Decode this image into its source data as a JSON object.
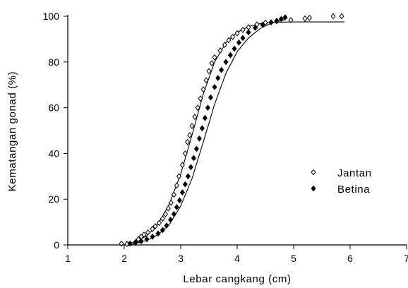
{
  "chart_data": {
    "type": "scatter",
    "title": "",
    "xlabel": "Lebar cangkang (cm)",
    "ylabel": "Kematangan gonad (%)",
    "xlim": [
      1,
      7
    ],
    "ylim": [
      0,
      100
    ],
    "xticks": [
      1,
      2,
      3,
      4,
      5,
      6,
      7
    ],
    "yticks": [
      0,
      20,
      40,
      60,
      80,
      100
    ],
    "grid": false,
    "legend_position": "center-right",
    "series": [
      {
        "name": "Jantan",
        "marker": "open-diamond",
        "color": "#000000",
        "points": [
          [
            1.95,
            0.6
          ],
          [
            2.05,
            0.4
          ],
          [
            2.2,
            1.2
          ],
          [
            2.25,
            2.5
          ],
          [
            2.3,
            3.6
          ],
          [
            2.35,
            4.5
          ],
          [
            2.42,
            5.5
          ],
          [
            2.5,
            7.0
          ],
          [
            2.55,
            8.2
          ],
          [
            2.62,
            9.6
          ],
          [
            2.68,
            11.5
          ],
          [
            2.73,
            13.5
          ],
          [
            2.78,
            16.0
          ],
          [
            2.83,
            18.5
          ],
          [
            2.88,
            22.0
          ],
          [
            2.93,
            26.0
          ],
          [
            2.97,
            30.0
          ],
          [
            3.03,
            35.0
          ],
          [
            3.08,
            40.0
          ],
          [
            3.12,
            45.0
          ],
          [
            3.16,
            48.0
          ],
          [
            3.2,
            52.0
          ],
          [
            3.25,
            56.0
          ],
          [
            3.3,
            60.0
          ],
          [
            3.35,
            64.0
          ],
          [
            3.4,
            68.0
          ],
          [
            3.45,
            72.0
          ],
          [
            3.5,
            76.0
          ],
          [
            3.55,
            79.5
          ],
          [
            3.6,
            82.0
          ],
          [
            3.7,
            85.0
          ],
          [
            3.78,
            87.5
          ],
          [
            3.85,
            89.5
          ],
          [
            3.92,
            91.0
          ],
          [
            4.0,
            92.5
          ],
          [
            4.1,
            94.0
          ],
          [
            4.2,
            95.2
          ],
          [
            4.35,
            96.4
          ],
          [
            4.5,
            97.2
          ],
          [
            4.7,
            97.8
          ],
          [
            4.95,
            98.3
          ],
          [
            5.2,
            99.0
          ],
          [
            5.28,
            99.3
          ],
          [
            5.7,
            100.0
          ],
          [
            5.85,
            100.0
          ]
        ],
        "curve": [
          [
            2.0,
            0.0
          ],
          [
            2.2,
            1.5
          ],
          [
            2.4,
            4.0
          ],
          [
            2.6,
            9.0
          ],
          [
            2.8,
            18.0
          ],
          [
            3.0,
            31.0
          ],
          [
            3.2,
            48.0
          ],
          [
            3.4,
            66.0
          ],
          [
            3.6,
            80.0
          ],
          [
            3.8,
            88.5
          ],
          [
            4.0,
            93.0
          ],
          [
            4.2,
            95.5
          ],
          [
            4.4,
            96.8
          ],
          [
            4.6,
            97.3
          ],
          [
            5.0,
            97.5
          ],
          [
            5.5,
            97.5
          ],
          [
            5.9,
            97.5
          ]
        ]
      },
      {
        "name": "Betina",
        "marker": "filled-diamond",
        "color": "#000000",
        "points": [
          [
            2.1,
            0.6
          ],
          [
            2.2,
            1.0
          ],
          [
            2.3,
            1.6
          ],
          [
            2.4,
            2.5
          ],
          [
            2.5,
            3.6
          ],
          [
            2.6,
            5.0
          ],
          [
            2.68,
            6.5
          ],
          [
            2.75,
            8.5
          ],
          [
            2.82,
            11.0
          ],
          [
            2.88,
            13.5
          ],
          [
            2.93,
            16.5
          ],
          [
            2.98,
            19.5
          ],
          [
            3.03,
            23.0
          ],
          [
            3.08,
            26.5
          ],
          [
            3.13,
            30.0
          ],
          [
            3.18,
            34.0
          ],
          [
            3.23,
            38.0
          ],
          [
            3.28,
            42.0
          ],
          [
            3.33,
            46.5
          ],
          [
            3.38,
            51.0
          ],
          [
            3.43,
            55.5
          ],
          [
            3.48,
            60.0
          ],
          [
            3.53,
            64.5
          ],
          [
            3.6,
            69.0
          ],
          [
            3.66,
            73.0
          ],
          [
            3.72,
            76.5
          ],
          [
            3.8,
            80.0
          ],
          [
            3.88,
            83.0
          ],
          [
            3.95,
            85.8
          ],
          [
            4.03,
            88.5
          ],
          [
            4.1,
            90.5
          ],
          [
            4.2,
            93.0
          ],
          [
            4.32,
            95.0
          ],
          [
            4.45,
            96.3
          ],
          [
            4.6,
            97.3
          ],
          [
            4.7,
            98.0
          ],
          [
            4.78,
            98.8
          ],
          [
            4.85,
            99.5
          ]
        ],
        "curve": [
          [
            2.1,
            0.0
          ],
          [
            2.4,
            2.0
          ],
          [
            2.6,
            4.5
          ],
          [
            2.8,
            9.0
          ],
          [
            3.0,
            17.0
          ],
          [
            3.2,
            29.0
          ],
          [
            3.4,
            45.0
          ],
          [
            3.6,
            61.5
          ],
          [
            3.8,
            75.0
          ],
          [
            4.0,
            84.5
          ],
          [
            4.2,
            90.5
          ],
          [
            4.4,
            94.5
          ],
          [
            4.6,
            97.0
          ],
          [
            4.85,
            98.5
          ]
        ]
      }
    ]
  }
}
